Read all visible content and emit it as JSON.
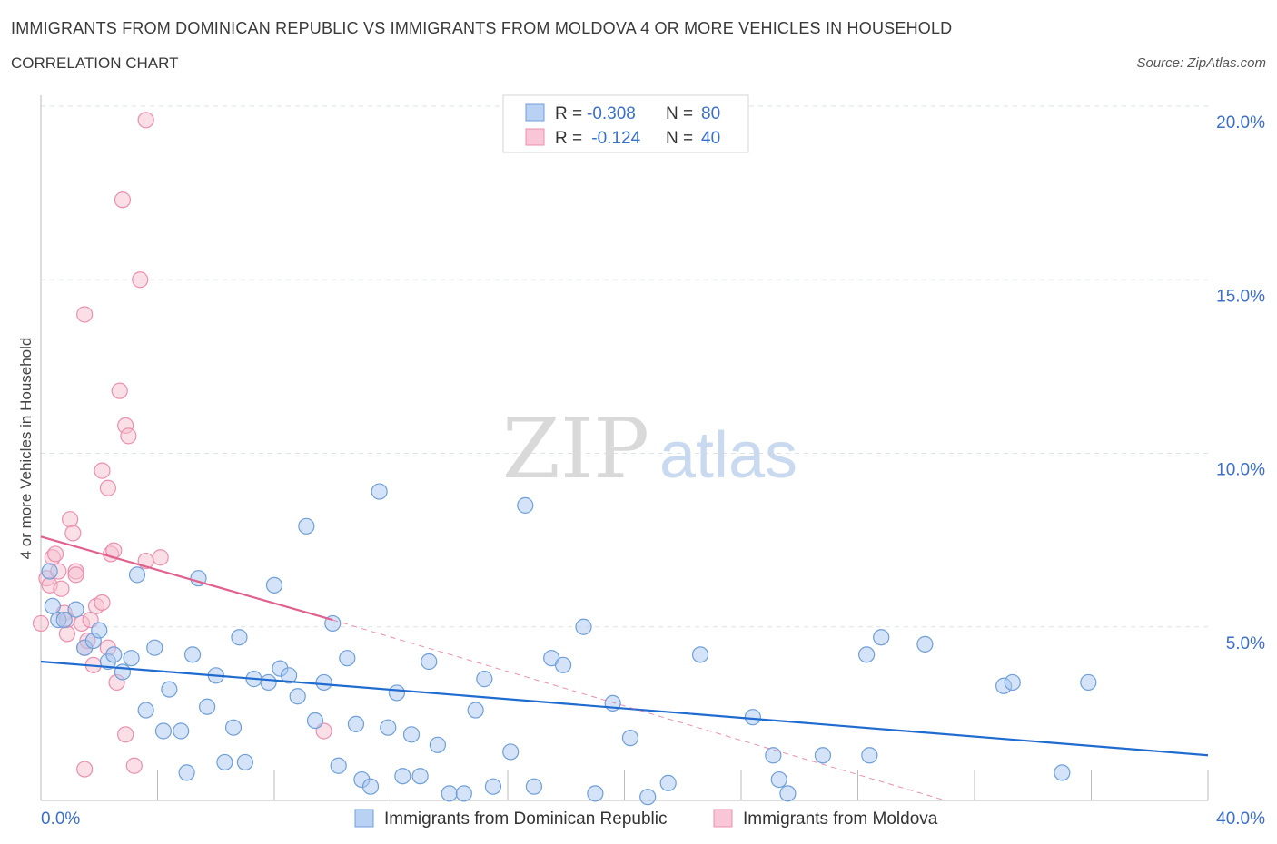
{
  "header": {
    "title": "IMMIGRANTS FROM DOMINICAN REPUBLIC VS IMMIGRANTS FROM MOLDOVA 4 OR MORE VEHICLES IN HOUSEHOLD",
    "subtitle": "CORRELATION CHART",
    "source": "Source: ZipAtlas.com"
  },
  "watermark": {
    "zip": "ZIP",
    "atlas": "atlas"
  },
  "stats": [
    {
      "r_label": "R = ",
      "r_value": "-0.308",
      "n_label": "N = ",
      "n_value": "80"
    },
    {
      "r_label": "R = ",
      "r_value": " -0.124",
      "n_label": "N = ",
      "n_value": "40"
    }
  ],
  "colors": {
    "blue_fill": "#a9c8f0",
    "blue_stroke": "#6f9fd8",
    "blue_line": "#1f6bd0",
    "pink_fill": "#f6bfd0",
    "pink_stroke": "#ec8fae",
    "pink_line": "#e0618e",
    "axis_text": "#3b6fc9",
    "grid": "#dde3ea"
  },
  "chart_data": {
    "type": "scatter",
    "title": "IMMIGRANTS FROM DOMINICAN REPUBLIC VS IMMIGRANTS FROM MOLDOVA 4 OR MORE VEHICLES IN HOUSEHOLD",
    "xlabel": "",
    "ylabel": "4 or more Vehicles in Household",
    "xlim": [
      0,
      40
    ],
    "ylim": [
      0,
      20
    ],
    "x_tick_labels": [
      "0.0%",
      "40.0%"
    ],
    "y_ticks": [
      5,
      10,
      15,
      20
    ],
    "y_tick_labels": [
      "5.0%",
      "10.0%",
      "15.0%",
      "20.0%"
    ],
    "legend": [
      "Immigrants from Dominican Republic",
      "Immigrants from Moldova"
    ],
    "series": [
      {
        "name": "Immigrants from Dominican Republic",
        "color": "blue",
        "points": [
          [
            0.3,
            6.6
          ],
          [
            0.4,
            5.6
          ],
          [
            0.6,
            5.2
          ],
          [
            0.8,
            5.2
          ],
          [
            1.2,
            5.5
          ],
          [
            1.5,
            4.4
          ],
          [
            1.8,
            4.6
          ],
          [
            2.0,
            4.9
          ],
          [
            2.3,
            4.0
          ],
          [
            2.5,
            4.2
          ],
          [
            2.8,
            3.7
          ],
          [
            3.1,
            4.1
          ],
          [
            3.3,
            6.5
          ],
          [
            3.6,
            2.6
          ],
          [
            3.9,
            4.4
          ],
          [
            4.2,
            2.0
          ],
          [
            4.4,
            3.2
          ],
          [
            4.8,
            2.0
          ],
          [
            5.0,
            0.8
          ],
          [
            5.2,
            4.2
          ],
          [
            5.4,
            6.4
          ],
          [
            5.7,
            2.7
          ],
          [
            6.0,
            3.6
          ],
          [
            6.3,
            1.1
          ],
          [
            6.6,
            2.1
          ],
          [
            6.8,
            4.7
          ],
          [
            7.0,
            1.1
          ],
          [
            7.3,
            3.5
          ],
          [
            7.8,
            3.4
          ],
          [
            8.0,
            6.2
          ],
          [
            8.2,
            3.8
          ],
          [
            8.5,
            3.6
          ],
          [
            8.8,
            3.0
          ],
          [
            9.1,
            7.9
          ],
          [
            9.4,
            2.3
          ],
          [
            9.7,
            3.4
          ],
          [
            10.0,
            5.1
          ],
          [
            10.2,
            1.0
          ],
          [
            10.5,
            4.1
          ],
          [
            10.8,
            2.2
          ],
          [
            11.0,
            0.6
          ],
          [
            11.3,
            0.4
          ],
          [
            11.6,
            8.9
          ],
          [
            11.9,
            2.1
          ],
          [
            12.2,
            3.1
          ],
          [
            12.4,
            0.7
          ],
          [
            12.7,
            1.9
          ],
          [
            13.0,
            0.7
          ],
          [
            13.3,
            4.0
          ],
          [
            13.6,
            1.6
          ],
          [
            14.0,
            0.2
          ],
          [
            14.5,
            0.2
          ],
          [
            14.9,
            2.6
          ],
          [
            15.2,
            3.5
          ],
          [
            15.5,
            0.4
          ],
          [
            16.1,
            1.4
          ],
          [
            16.6,
            8.5
          ],
          [
            16.9,
            0.4
          ],
          [
            17.5,
            4.1
          ],
          [
            17.9,
            3.9
          ],
          [
            18.6,
            5.0
          ],
          [
            19.0,
            0.2
          ],
          [
            19.6,
            2.8
          ],
          [
            20.2,
            1.8
          ],
          [
            20.8,
            0.1
          ],
          [
            21.5,
            0.5
          ],
          [
            22.6,
            4.2
          ],
          [
            24.4,
            2.4
          ],
          [
            25.1,
            1.3
          ],
          [
            25.3,
            0.6
          ],
          [
            25.6,
            0.2
          ],
          [
            26.8,
            1.3
          ],
          [
            28.3,
            4.2
          ],
          [
            28.8,
            4.7
          ],
          [
            28.4,
            1.3
          ],
          [
            30.3,
            4.5
          ],
          [
            33.0,
            3.3
          ],
          [
            33.3,
            3.4
          ],
          [
            35.0,
            0.8
          ],
          [
            35.9,
            3.4
          ]
        ]
      },
      {
        "name": "Immigrants from Moldova",
        "color": "pink",
        "points": [
          [
            0.0,
            5.1
          ],
          [
            0.2,
            6.4
          ],
          [
            0.3,
            6.2
          ],
          [
            0.4,
            7.0
          ],
          [
            0.5,
            7.1
          ],
          [
            0.6,
            6.6
          ],
          [
            0.7,
            6.1
          ],
          [
            0.8,
            5.4
          ],
          [
            0.9,
            5.2
          ],
          [
            0.9,
            4.8
          ],
          [
            1.0,
            8.1
          ],
          [
            1.1,
            7.7
          ],
          [
            1.2,
            6.6
          ],
          [
            1.2,
            6.5
          ],
          [
            1.4,
            5.1
          ],
          [
            1.5,
            4.4
          ],
          [
            1.5,
            0.9
          ],
          [
            1.6,
            4.6
          ],
          [
            1.7,
            5.2
          ],
          [
            1.8,
            3.9
          ],
          [
            1.9,
            5.6
          ],
          [
            2.1,
            5.7
          ],
          [
            2.3,
            4.4
          ],
          [
            1.5,
            14.0
          ],
          [
            2.1,
            9.5
          ],
          [
            2.3,
            9.0
          ],
          [
            2.4,
            7.1
          ],
          [
            2.5,
            7.2
          ],
          [
            2.7,
            11.8
          ],
          [
            2.9,
            10.8
          ],
          [
            3.0,
            10.5
          ],
          [
            2.6,
            3.4
          ],
          [
            2.9,
            1.9
          ],
          [
            3.2,
            1.0
          ],
          [
            2.8,
            17.3
          ],
          [
            3.6,
            19.6
          ],
          [
            3.4,
            15.0
          ],
          [
            4.1,
            7.0
          ],
          [
            3.6,
            6.9
          ],
          [
            9.7,
            2.0
          ]
        ]
      }
    ],
    "trend_lines": [
      {
        "series": "Immigrants from Dominican Republic",
        "x": [
          0,
          40
        ],
        "y": [
          4.0,
          1.3
        ]
      },
      {
        "series": "Immigrants from Moldova",
        "x": [
          0,
          10
        ],
        "y": [
          7.6,
          5.2
        ],
        "dashed_extension_to": [
          31,
          0
        ]
      }
    ]
  }
}
